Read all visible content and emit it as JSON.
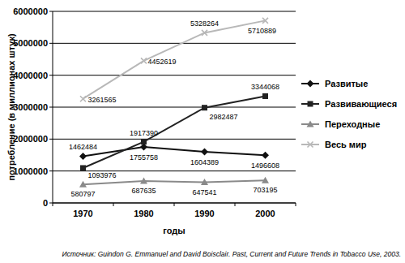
{
  "chart_data": {
    "type": "line",
    "x_label": "годы",
    "y_label": "потребление (в миллионах штук)",
    "source": "Источник: Guindon G. Emmanuel and David Boisclair. Past, Current and Future Trends in Tobacco Use, 2003.",
    "categories": [
      "1970",
      "1980",
      "1990",
      "2000"
    ],
    "ylim": [
      0,
      6000000
    ],
    "yticks": [
      0,
      1000000,
      2000000,
      3000000,
      4000000,
      5000000,
      6000000
    ],
    "grid": true,
    "data_labels": true,
    "legend": "right",
    "series": [
      {
        "name": "Развитые",
        "color": "#111111",
        "marker": "diamond",
        "values": [
          1462484,
          1755758,
          1604389,
          1496608
        ]
      },
      {
        "name": "Развивающиеся",
        "color": "#222222",
        "marker": "square",
        "values": [
          1093976,
          1917390,
          2982487,
          3344068
        ]
      },
      {
        "name": "Переходные",
        "color": "#8a8a8a",
        "marker": "triangle",
        "values": [
          580797,
          687635,
          647541,
          703195
        ]
      },
      {
        "name": "Весь мир",
        "color": "#b8b8b8",
        "marker": "x",
        "values": [
          3261565,
          4452619,
          5328264,
          5710889
        ]
      }
    ]
  }
}
